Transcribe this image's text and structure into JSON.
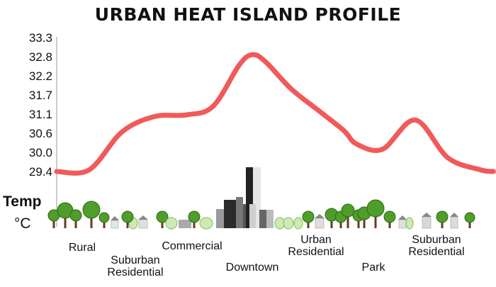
{
  "chart_data": {
    "type": "line",
    "title": "URBAN HEAT ISLAND PROFILE",
    "ylabel": "Temp",
    "yunit": "°C",
    "yticks": [
      "33.3",
      "32.8",
      "32.2",
      "31.7",
      "31.1",
      "30.6",
      "30.0",
      "29.4"
    ],
    "ylim": [
      29.4,
      33.3
    ],
    "categories": [
      {
        "label": "Rural",
        "lines": [
          "Rural"
        ]
      },
      {
        "label": "Suburban Residential",
        "lines": [
          "Suburban",
          "Residential"
        ]
      },
      {
        "label": "Commercial",
        "lines": [
          "Commercial"
        ]
      },
      {
        "label": "Downtown",
        "lines": [
          "Downtown"
        ]
      },
      {
        "label": "Urban Residential",
        "lines": [
          "Urban",
          "Residential"
        ]
      },
      {
        "label": "Park",
        "lines": [
          "Park"
        ]
      },
      {
        "label": "Suburban Residential",
        "lines": [
          "Suburban",
          "Residential"
        ]
      }
    ],
    "series": [
      {
        "color": "#f05a5a",
        "x": [
          0,
          0.5,
          1,
          1.5,
          2,
          2.4,
          2.8,
          3,
          3.2,
          3.6,
          4,
          4.4,
          4.6,
          5,
          5.5,
          6,
          6.5,
          6.7
        ],
        "values": [
          29.4,
          29.45,
          30.55,
          31.0,
          31.05,
          31.3,
          32.5,
          32.8,
          32.6,
          31.8,
          31.2,
          30.6,
          30.2,
          30.05,
          30.9,
          29.8,
          29.45,
          29.4
        ]
      }
    ],
    "grid": false,
    "legend": "none"
  }
}
